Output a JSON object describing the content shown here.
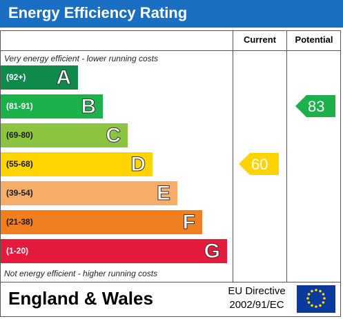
{
  "header": {
    "title": "Energy Efficiency Rating"
  },
  "columns": {
    "current": "Current",
    "potential": "Potential"
  },
  "notes": {
    "top": "Very energy efficient - lower running costs",
    "bottom": "Not energy efficient - higher running costs"
  },
  "chart_data": {
    "type": "bar",
    "bands": [
      {
        "range": "(92+)",
        "letter": "A",
        "color": "#0f8a4c",
        "range_color": "#ffffff"
      },
      {
        "range": "(81-91)",
        "letter": "B",
        "color": "#1cb14b",
        "range_color": "#ffffff"
      },
      {
        "range": "(69-80)",
        "letter": "C",
        "color": "#8bc43f",
        "range_color": "#1a1a1a"
      },
      {
        "range": "(55-68)",
        "letter": "D",
        "color": "#ffd400",
        "range_color": "#1a1a1a"
      },
      {
        "range": "(39-54)",
        "letter": "E",
        "color": "#f7ad6a",
        "range_color": "#1a1a1a"
      },
      {
        "range": "(21-38)",
        "letter": "F",
        "color": "#f07f22",
        "range_color": "#1a1a1a"
      },
      {
        "range": "(1-20)",
        "letter": "G",
        "color": "#e41b3c",
        "range_color": "#ffffff"
      }
    ],
    "current": {
      "value": 60,
      "color": "#ffd400"
    },
    "potential": {
      "value": 83,
      "color": "#1cb14b"
    }
  },
  "footer": {
    "region": "England & Wales",
    "directive_line1": "EU Directive",
    "directive_line2": "2002/91/EC"
  }
}
